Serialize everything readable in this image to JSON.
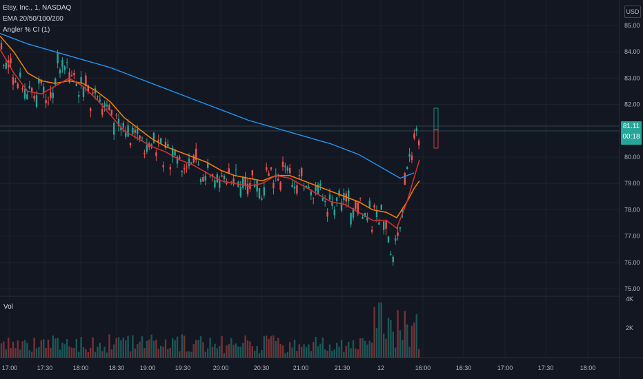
{
  "legend": {
    "symbol": "Etsy, Inc., 1, NASDAQ",
    "ema": "EMA 20/50/100/200",
    "angler": "Angler % CI (1)"
  },
  "volume_label": "Vol",
  "currency": "USD",
  "last_price": {
    "price": "81.11",
    "countdown": "00:18"
  },
  "chart_data": {
    "type": "candlestick",
    "y_ticks": [
      "85.00",
      "84.00",
      "83.00",
      "82.00",
      "81.00",
      "80.00",
      "79.00",
      "78.00",
      "77.00",
      "76.00",
      "75.00"
    ],
    "y_range": [
      75.0,
      85.0
    ],
    "volume_ticks": [
      "4K",
      "2K"
    ],
    "x_ticks": [
      "17:00",
      "17:30",
      "18:00",
      "18:30",
      "19:00",
      "19:30",
      "20:00",
      "20:30",
      "21:00",
      "21:30",
      "12",
      "16:00",
      "16:30",
      "17:00",
      "17:30",
      "18:00"
    ],
    "ema_20": [
      [
        0,
        84.1
      ],
      [
        20,
        83.2
      ],
      [
        40,
        82.5
      ],
      [
        60,
        82.4
      ],
      [
        80,
        82.7
      ],
      [
        100,
        83.0
      ],
      [
        120,
        82.7
      ],
      [
        140,
        82.2
      ],
      [
        160,
        81.6
      ],
      [
        180,
        81.0
      ],
      [
        200,
        80.7
      ],
      [
        220,
        80.4
      ],
      [
        240,
        80.2
      ],
      [
        260,
        79.9
      ],
      [
        280,
        79.7
      ],
      [
        300,
        79.4
      ],
      [
        320,
        79.1
      ],
      [
        340,
        79.0
      ],
      [
        360,
        78.9
      ],
      [
        380,
        79.0
      ],
      [
        400,
        79.3
      ],
      [
        420,
        79.2
      ],
      [
        440,
        78.9
      ],
      [
        460,
        78.6
      ],
      [
        480,
        78.3
      ],
      [
        500,
        78.2
      ],
      [
        520,
        77.9
      ],
      [
        540,
        77.6
      ],
      [
        560,
        77.6
      ],
      [
        575,
        77.3
      ],
      [
        590,
        78.3
      ],
      [
        600,
        79.2
      ],
      [
        608,
        79.9
      ]
    ],
    "ema_50": [
      [
        0,
        84.6
      ],
      [
        20,
        84.0
      ],
      [
        40,
        83.2
      ],
      [
        60,
        82.9
      ],
      [
        80,
        82.8
      ],
      [
        100,
        82.9
      ],
      [
        120,
        82.8
      ],
      [
        140,
        82.5
      ],
      [
        160,
        82.1
      ],
      [
        180,
        81.5
      ],
      [
        200,
        81.1
      ],
      [
        220,
        80.7
      ],
      [
        240,
        80.4
      ],
      [
        260,
        80.2
      ],
      [
        280,
        80.0
      ],
      [
        300,
        79.8
      ],
      [
        320,
        79.5
      ],
      [
        340,
        79.3
      ],
      [
        360,
        79.2
      ],
      [
        380,
        79.1
      ],
      [
        400,
        79.3
      ],
      [
        420,
        79.3
      ],
      [
        440,
        79.1
      ],
      [
        460,
        78.9
      ],
      [
        480,
        78.7
      ],
      [
        500,
        78.5
      ],
      [
        520,
        78.3
      ],
      [
        540,
        78.0
      ],
      [
        560,
        77.9
      ],
      [
        575,
        77.7
      ],
      [
        590,
        78.3
      ],
      [
        600,
        78.8
      ],
      [
        608,
        79.1
      ]
    ],
    "ema_200": [
      [
        0,
        84.7
      ],
      [
        40,
        84.3
      ],
      [
        80,
        84.0
      ],
      [
        120,
        83.7
      ],
      [
        160,
        83.4
      ],
      [
        200,
        83.0
      ],
      [
        240,
        82.6
      ],
      [
        280,
        82.2
      ],
      [
        320,
        81.8
      ],
      [
        360,
        81.4
      ],
      [
        400,
        81.1
      ],
      [
        440,
        80.8
      ],
      [
        480,
        80.5
      ],
      [
        520,
        80.1
      ],
      [
        560,
        79.5
      ],
      [
        580,
        79.2
      ],
      [
        600,
        79.4
      ]
    ]
  },
  "colors": {
    "up": "#26a69a",
    "down": "#ef5350",
    "ema20": "#d32f2f",
    "ema50": "#f57c00",
    "ema200": "#2196f3",
    "grid": "#1e222d",
    "text": "#b2b5be"
  }
}
